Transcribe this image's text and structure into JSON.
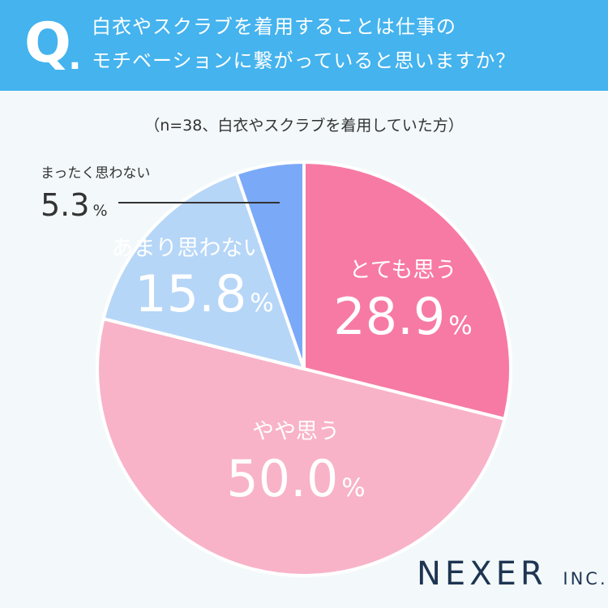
{
  "header": {
    "q_mark": "Q",
    "q_dot": ".",
    "question_line1": "白衣やスクラブを着用することは仕事の",
    "question_line2": "モチベーションに繋がっていると思いますか？"
  },
  "sample_note": "（n=38、白衣やスクラブを着用していた方）",
  "chart_data": {
    "type": "pie",
    "start": "12 o'clock",
    "direction": "clockwise",
    "unit": "%",
    "slices": [
      {
        "label": "とても思う",
        "value": 28.9,
        "display": "28.9",
        "color": "#f77aa4",
        "label_color": "#ffffff"
      },
      {
        "label": "やや思う",
        "value": 50.0,
        "display": "50.0",
        "color": "#f8b3c9",
        "label_color": "#ffffff"
      },
      {
        "label": "あまり思わない",
        "value": 15.8,
        "display": "15.8",
        "color": "#b6d6f7",
        "label_color": "#ffffff"
      },
      {
        "label": "まったく思わない",
        "value": 5.3,
        "display": "5.3",
        "color": "#7aa9f7",
        "label_color": "#333333",
        "callout": true
      }
    ]
  },
  "brand": {
    "name": "NEXER",
    "suffix": "INC."
  }
}
